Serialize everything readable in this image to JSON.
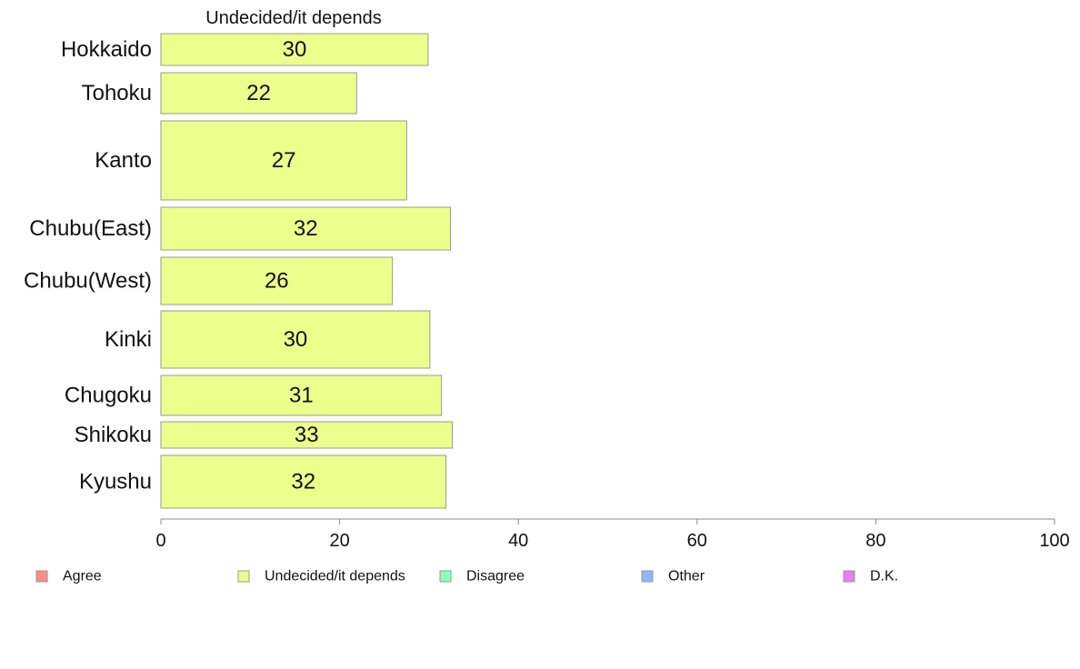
{
  "chart_data": {
    "type": "bar",
    "orientation": "horizontal",
    "title": "Undecided/it depends",
    "categories": [
      "Hokkaido",
      "Tohoku",
      "Kanto",
      "Chubu(East)",
      "Chubu(West)",
      "Kinki",
      "Chugoku",
      "Shikoku",
      "Kyushu"
    ],
    "series": [
      {
        "name": "Undecided/it depends",
        "color": "#ecff8c",
        "values": [
          30,
          22,
          27,
          32,
          26,
          30,
          31,
          33,
          32
        ],
        "exact_values": [
          29.9,
          21.9,
          27.5,
          32.4,
          25.9,
          30.1,
          31.4,
          32.6,
          31.9
        ]
      }
    ],
    "xlim": [
      0,
      100
    ],
    "xticks": [
      0,
      20,
      40,
      60,
      80,
      100
    ],
    "xlabel": "",
    "ylabel": "",
    "grid": false,
    "legend_position": "bottom",
    "legend": [
      {
        "label": "Agree",
        "color": "#ff8c8c"
      },
      {
        "label": "Undecided/it depends",
        "color": "#ecff8c"
      },
      {
        "label": "Disagree",
        "color": "#8cffb8"
      },
      {
        "label": "Other",
        "color": "#8cb8ff"
      },
      {
        "label": "D.K.",
        "color": "#e87ef0"
      }
    ],
    "bar_outline_color": "#999999",
    "axis_color": "#888888"
  }
}
